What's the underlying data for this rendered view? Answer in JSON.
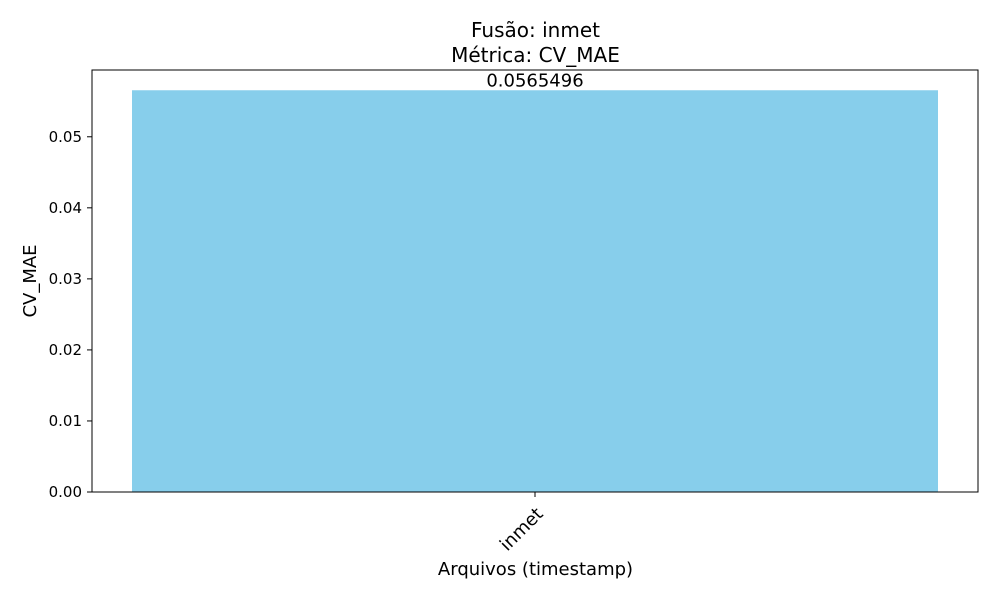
{
  "chart_data": {
    "type": "bar",
    "title_line1": "Fusão: inmet",
    "title_line2": "Métrica: CV_MAE",
    "xlabel": "Arquivos (timestamp)",
    "ylabel": "CV_MAE",
    "categories": [
      "inmet"
    ],
    "values": [
      0.0565496
    ],
    "value_labels": [
      "0.0565496"
    ],
    "ylim": [
      0,
      0.0594
    ],
    "yticks": [
      0.0,
      0.01,
      0.02,
      0.03,
      0.04,
      0.05
    ],
    "ytick_labels": [
      "0.00",
      "0.01",
      "0.02",
      "0.03",
      "0.04",
      "0.05"
    ],
    "bar_color": "#87CEEB",
    "grid": false,
    "legend": "none"
  }
}
